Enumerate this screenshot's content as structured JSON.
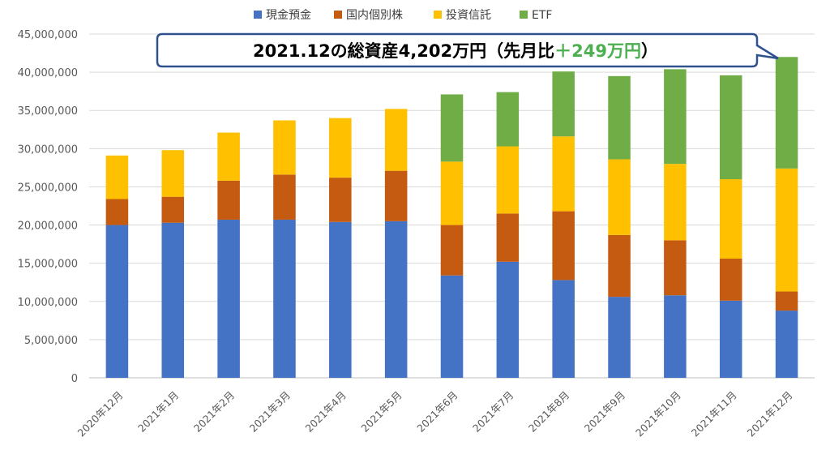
{
  "chart_data": {
    "type": "bar",
    "stacked": true,
    "categories": [
      "2020年12月",
      "2021年1月",
      "2021年2月",
      "2021年3月",
      "2021年4月",
      "2021年5月",
      "2021年6月",
      "2021年7月",
      "2021年8月",
      "2021年9月",
      "2021年10月",
      "2021年11月",
      "2021年12月"
    ],
    "series": [
      {
        "name": "現金預金",
        "color": "#4472c4",
        "values": [
          20000000,
          20300000,
          20700000,
          20700000,
          20400000,
          20500000,
          13400000,
          15200000,
          12800000,
          10600000,
          10800000,
          10100000,
          8800000
        ]
      },
      {
        "name": "国内個別株",
        "color": "#c55a11",
        "values": [
          3400000,
          3400000,
          5100000,
          5900000,
          5800000,
          6600000,
          6600000,
          6300000,
          9000000,
          8100000,
          7200000,
          5500000,
          2500000
        ]
      },
      {
        "name": "投資信託",
        "color": "#ffc000",
        "values": [
          5700000,
          6100000,
          6300000,
          7100000,
          7800000,
          8100000,
          8300000,
          8800000,
          9800000,
          9900000,
          10000000,
          10400000,
          16100000
        ]
      },
      {
        "name": "ETF",
        "color": "#70ad47",
        "values": [
          0,
          0,
          0,
          0,
          0,
          0,
          8800000,
          7100000,
          8500000,
          10900000,
          12400000,
          13600000,
          14600000
        ]
      }
    ],
    "y_ticks": [
      "0",
      "5,000,000",
      "10,000,000",
      "15,000,000",
      "20,000,000",
      "25,000,000",
      "30,000,000",
      "35,000,000",
      "40,000,000",
      "45,000,000"
    ],
    "ylim": [
      0,
      45000000
    ],
    "y_step": 5000000,
    "grid": true,
    "legend": "top"
  },
  "callout": {
    "prefix": "2021.12の総資産4,202万円（先月比",
    "accent": "＋249万円",
    "suffix": "）"
  }
}
